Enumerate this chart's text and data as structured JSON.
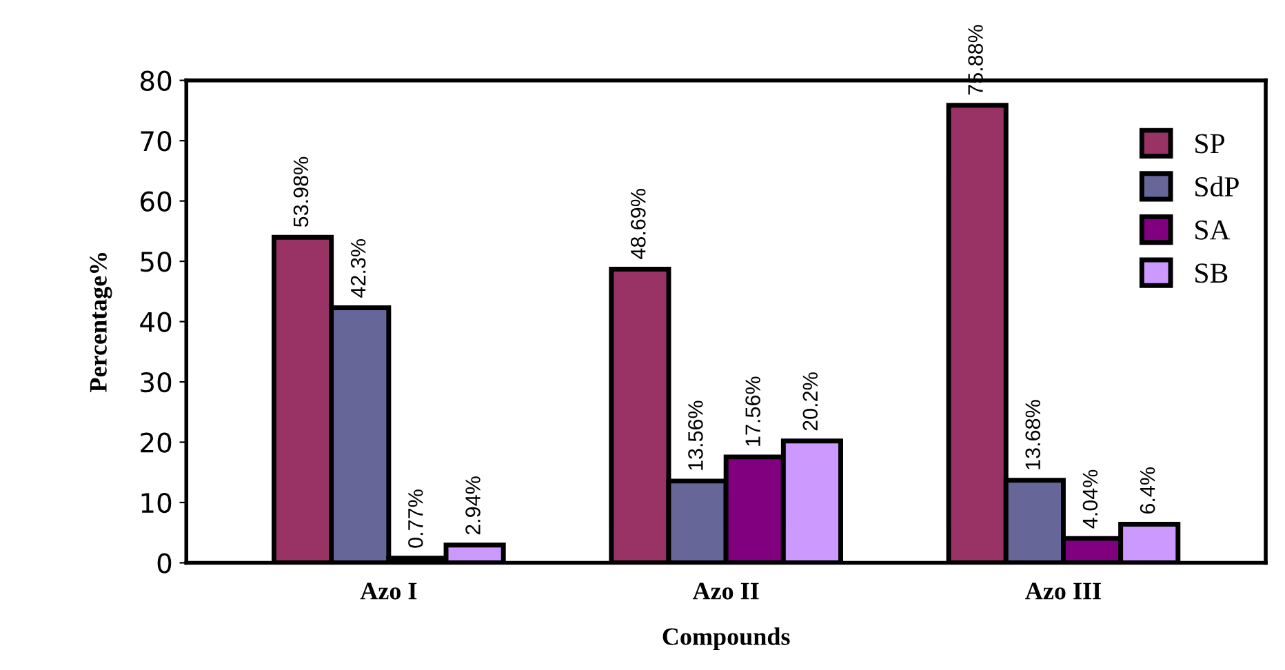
{
  "chart_data": {
    "type": "bar",
    "xlabel": "Compounds",
    "ylabel": "Percentage%",
    "categories": [
      "Azo I",
      "Azo II",
      "Azo III"
    ],
    "series": [
      {
        "name": "SP",
        "color": "#993366",
        "values": [
          53.98,
          48.69,
          75.88
        ],
        "value_labels": [
          "53.98%",
          "48.69%",
          "75.88%"
        ]
      },
      {
        "name": "SdP",
        "color": "#666699",
        "values": [
          42.3,
          13.56,
          13.68
        ],
        "value_labels": [
          "42.3%",
          "13.56%",
          "13.68%"
        ]
      },
      {
        "name": "SA",
        "color": "#800080",
        "values": [
          0.77,
          17.56,
          4.04
        ],
        "value_labels": [
          "0.77%",
          "17.56%",
          "4.04%"
        ]
      },
      {
        "name": "SB",
        "color": "#cc99ff",
        "values": [
          2.94,
          20.2,
          6.4
        ],
        "value_labels": [
          "2.94%",
          "20.2%",
          "6.4%"
        ]
      }
    ],
    "ylim": [
      0,
      80
    ],
    "yticks": [
      0,
      10,
      20,
      30,
      40,
      50,
      60,
      70,
      80
    ],
    "grid": false,
    "legend": "top right"
  }
}
